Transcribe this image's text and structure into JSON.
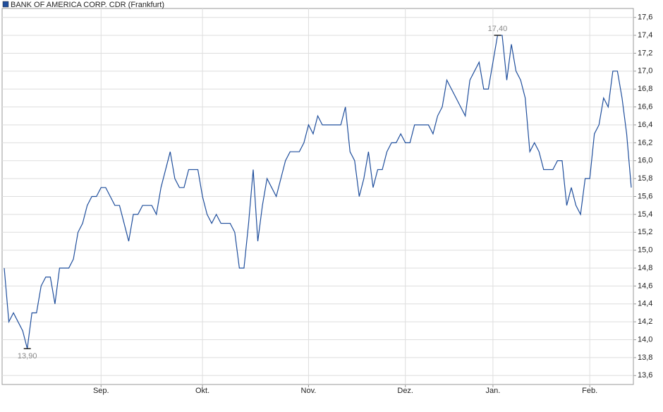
{
  "chart_data": {
    "type": "line",
    "series": [
      {
        "name": "BANK OF AMERICA CORP. CDR (Frankfurt)",
        "color": "#1f4e9c",
        "values": [
          14.8,
          14.2,
          14.3,
          14.2,
          14.1,
          13.9,
          14.3,
          14.3,
          14.6,
          14.7,
          14.7,
          14.4,
          14.8,
          14.8,
          14.8,
          14.9,
          15.2,
          15.3,
          15.5,
          15.6,
          15.6,
          15.7,
          15.7,
          15.6,
          15.5,
          15.5,
          15.3,
          15.1,
          15.4,
          15.4,
          15.5,
          15.5,
          15.5,
          15.4,
          15.7,
          15.9,
          16.1,
          15.8,
          15.7,
          15.7,
          15.9,
          15.9,
          15.9,
          15.6,
          15.4,
          15.3,
          15.4,
          15.3,
          15.3,
          15.3,
          15.2,
          14.8,
          14.8,
          15.3,
          15.9,
          15.1,
          15.5,
          15.8,
          15.7,
          15.6,
          15.8,
          16.0,
          16.1,
          16.1,
          16.1,
          16.2,
          16.4,
          16.3,
          16.5,
          16.4,
          16.4,
          16.4,
          16.4,
          16.4,
          16.6,
          16.1,
          16.0,
          15.6,
          15.8,
          16.1,
          15.7,
          15.9,
          15.9,
          16.1,
          16.2,
          16.2,
          16.3,
          16.2,
          16.2,
          16.4,
          16.4,
          16.4,
          16.4,
          16.3,
          16.5,
          16.6,
          16.9,
          16.8,
          16.7,
          16.6,
          16.5,
          16.9,
          17.0,
          17.1,
          16.8,
          16.8,
          17.1,
          17.4,
          17.4,
          16.9,
          17.3,
          17.0,
          16.9,
          16.7,
          16.1,
          16.2,
          16.1,
          15.9,
          15.9,
          15.9,
          16.0,
          16.0,
          15.5,
          15.7,
          15.5,
          15.4,
          15.8,
          15.8,
          16.3,
          16.4,
          16.7,
          16.6,
          17.0,
          17.0,
          16.7,
          16.3,
          15.7
        ],
        "value_labels": [
          null,
          null,
          null,
          null,
          null,
          "13,90",
          null,
          null,
          null,
          null,
          null,
          null,
          null,
          null,
          null,
          null,
          null,
          null,
          null,
          null,
          null,
          null,
          null,
          null,
          null,
          null,
          null,
          null,
          null,
          null,
          null,
          null,
          null,
          null,
          null,
          null,
          null,
          null,
          null,
          null,
          null,
          null,
          null,
          null,
          null,
          null,
          null,
          null,
          null,
          null,
          null,
          null,
          null,
          null,
          null,
          null,
          null,
          null,
          null,
          null,
          null,
          null,
          null,
          null,
          null,
          null,
          null,
          null,
          null,
          null,
          null,
          null,
          null,
          null,
          null,
          null,
          null,
          null,
          null,
          null,
          null,
          null,
          null,
          null,
          null,
          null,
          null,
          null,
          null,
          null,
          null,
          null,
          null,
          null,
          null,
          null,
          null,
          null,
          null,
          null,
          null,
          null,
          null,
          null,
          null,
          null,
          null,
          "17,40",
          null,
          null,
          null,
          null,
          null,
          null,
          null,
          null,
          null,
          null,
          null,
          null,
          null,
          null,
          null,
          null,
          null,
          null,
          null,
          null,
          null,
          null,
          null,
          null,
          null,
          null,
          null,
          null,
          null
        ]
      }
    ],
    "categories": [
      null,
      null,
      null,
      null,
      null,
      null,
      null,
      null,
      null,
      null,
      null,
      null,
      null,
      null,
      null,
      null,
      null,
      null,
      null,
      null,
      null,
      "Sep.",
      null,
      null,
      null,
      null,
      null,
      null,
      null,
      null,
      null,
      null,
      null,
      null,
      null,
      null,
      null,
      null,
      null,
      null,
      null,
      null,
      null,
      "Okt.",
      null,
      null,
      null,
      null,
      null,
      null,
      null,
      null,
      null,
      null,
      null,
      null,
      null,
      null,
      null,
      null,
      null,
      null,
      null,
      null,
      null,
      null,
      "Nov.",
      null,
      null,
      null,
      null,
      null,
      null,
      null,
      null,
      null,
      null,
      null,
      null,
      null,
      null,
      null,
      null,
      null,
      null,
      null,
      null,
      "Dez.",
      null,
      null,
      null,
      null,
      null,
      null,
      null,
      null,
      null,
      null,
      null,
      null,
      null,
      null,
      null,
      null,
      null,
      null,
      "Jan.",
      null,
      null,
      null,
      null,
      null,
      null,
      null,
      null,
      null,
      null,
      null,
      null,
      null,
      null,
      null,
      null,
      null,
      null,
      null,
      null,
      "Feb.",
      null,
      null,
      null,
      null,
      null,
      null,
      null,
      null,
      null
    ],
    "ylim": [
      13.5,
      17.7
    ],
    "yticks": [
      {
        "value": 13.6,
        "label": "13,6"
      },
      {
        "value": 13.8,
        "label": "13,8"
      },
      {
        "value": 14.0,
        "label": "14,0"
      },
      {
        "value": 14.2,
        "label": "14,2"
      },
      {
        "value": 14.4,
        "label": "14,4"
      },
      {
        "value": 14.6,
        "label": "14,6"
      },
      {
        "value": 14.8,
        "label": "14,8"
      },
      {
        "value": 15.0,
        "label": "15,0"
      },
      {
        "value": 15.2,
        "label": "15,2"
      },
      {
        "value": 15.4,
        "label": "15,4"
      },
      {
        "value": 15.6,
        "label": "15,6"
      },
      {
        "value": 15.8,
        "label": "15,8"
      },
      {
        "value": 16.0,
        "label": "16,0"
      },
      {
        "value": 16.2,
        "label": "16,2"
      },
      {
        "value": 16.4,
        "label": "16,4"
      },
      {
        "value": 16.6,
        "label": "16,6"
      },
      {
        "value": 16.8,
        "label": "16,8"
      },
      {
        "value": 17.0,
        "label": "17,0"
      },
      {
        "value": 17.2,
        "label": "17,2"
      },
      {
        "value": 17.4,
        "label": "17,4"
      },
      {
        "value": 17.6,
        "label": "17,6"
      }
    ],
    "grid": true,
    "legend": "top-left"
  }
}
